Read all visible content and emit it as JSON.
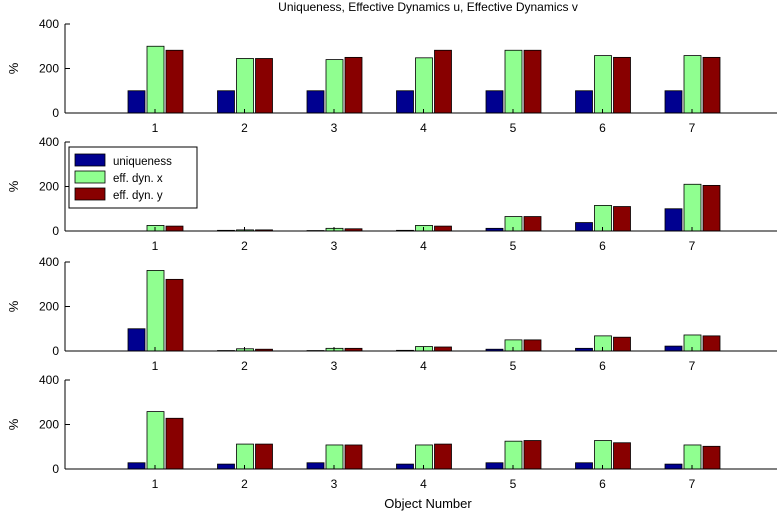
{
  "title": "Uniqueness, Effective Dynamics u, Effective Dynamics v",
  "colors": {
    "uniqueness": "#000090",
    "eff_x": "#90ff90",
    "eff_y": "#880000",
    "axis": "#000000"
  },
  "chart_data": {
    "type": "bar",
    "title": "Uniqueness, Effective Dynamics u, Effective Dynamics v",
    "xlabel": "Object Number",
    "categories": [
      "1",
      "2",
      "3",
      "4",
      "5",
      "6",
      "7"
    ],
    "legend": {
      "placement": "top-left",
      "panel": 2,
      "entries": [
        "uniqueness",
        "eff. dyn. x",
        "eff. dyn. y"
      ]
    },
    "panels": [
      {
        "ylabel": "%",
        "ylim": [
          0,
          400
        ],
        "yticks": [
          "0",
          "200",
          "400"
        ],
        "series": [
          {
            "name": "uniqueness",
            "values": [
              100,
              100,
              100,
              100,
              100,
              100,
              100
            ]
          },
          {
            "name": "eff. dyn. x",
            "values": [
              300,
              245,
              240,
              248,
              282,
              258,
              258
            ]
          },
          {
            "name": "eff. dyn. y",
            "values": [
              282,
              245,
              250,
              282,
              282,
              250,
              250
            ]
          }
        ]
      },
      {
        "ylabel": "%",
        "ylim": [
          0,
          400
        ],
        "yticks": [
          "0",
          "200",
          "400"
        ],
        "series": [
          {
            "name": "uniqueness",
            "values": [
              0,
              3,
              2,
              3,
              12,
              38,
              100
            ]
          },
          {
            "name": "eff. dyn. x",
            "values": [
              25,
              5,
              12,
              25,
              65,
              115,
              210
            ]
          },
          {
            "name": "eff. dyn. y",
            "values": [
              22,
              5,
              10,
              22,
              65,
              110,
              205
            ]
          }
        ]
      },
      {
        "ylabel": "%",
        "ylim": [
          0,
          400
        ],
        "yticks": [
          "0",
          "200",
          "400"
        ],
        "series": [
          {
            "name": "uniqueness",
            "values": [
              100,
              2,
              2,
              3,
              8,
              12,
              22
            ]
          },
          {
            "name": "eff. dyn. x",
            "values": [
              362,
              10,
              12,
              20,
              50,
              68,
              72
            ]
          },
          {
            "name": "eff. dyn. y",
            "values": [
              322,
              8,
              12,
              18,
              50,
              62,
              68
            ]
          }
        ]
      },
      {
        "ylabel": "%",
        "ylim": [
          0,
          400
        ],
        "yticks": [
          "0",
          "200",
          "400"
        ],
        "series": [
          {
            "name": "uniqueness",
            "values": [
              28,
              22,
              28,
              22,
              28,
              28,
              22
            ]
          },
          {
            "name": "eff. dyn. x",
            "values": [
              258,
              112,
              108,
              108,
              125,
              128,
              108
            ]
          },
          {
            "name": "eff. dyn. y",
            "values": [
              228,
              112,
              108,
              112,
              128,
              118,
              102
            ]
          }
        ]
      }
    ]
  }
}
